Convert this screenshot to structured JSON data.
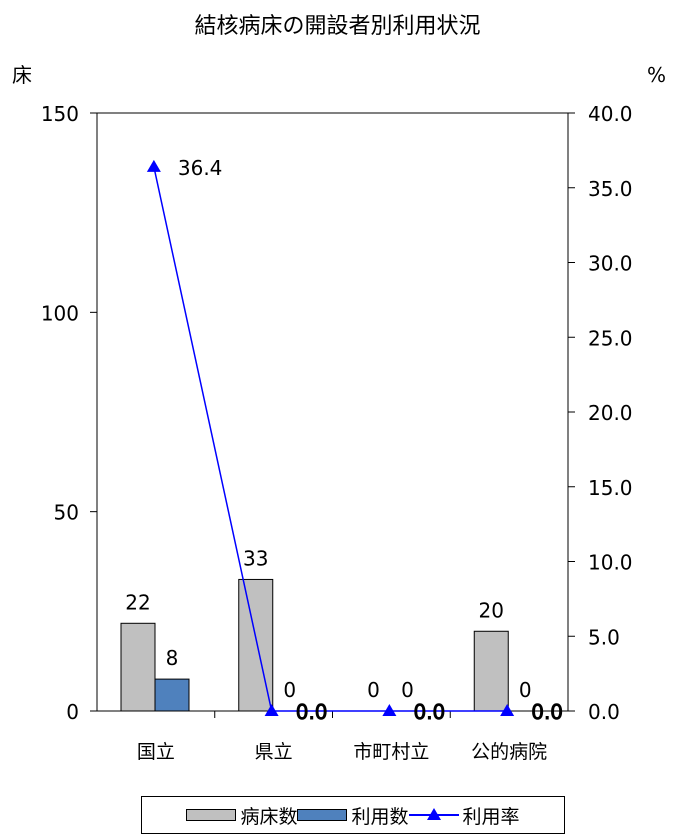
{
  "chart_data": {
    "type": "bar",
    "title": "結核病床の開設者別利用状況",
    "categories": [
      "国立",
      "県立",
      "市町村立",
      "公的病院"
    ],
    "series": [
      {
        "name": "病床数",
        "kind": "bar",
        "axis": "left",
        "color": "#c0c0c0",
        "values": [
          22,
          33,
          0,
          20
        ]
      },
      {
        "name": "利用数",
        "kind": "bar",
        "axis": "left",
        "color": "#4f81bd",
        "values": [
          8,
          0,
          0,
          0
        ]
      },
      {
        "name": "利用率",
        "kind": "line",
        "axis": "right",
        "color": "#0000ff",
        "marker": "triangle",
        "values": [
          36.4,
          0.0,
          0.0,
          0.0
        ]
      }
    ],
    "y_left": {
      "unit": "床",
      "min": 0,
      "max": 150,
      "ticks": [
        "0",
        "50",
        "100",
        "150"
      ]
    },
    "y_right": {
      "unit": "%",
      "min": 0,
      "max": 40,
      "ticks": [
        "0.0",
        "5.0",
        "10.0",
        "15.0",
        "20.0",
        "25.0",
        "30.0",
        "35.0",
        "40.0"
      ]
    },
    "data_labels": {
      "bars": [
        [
          "22",
          "8"
        ],
        [
          "33",
          "0"
        ],
        [
          "0",
          "0"
        ],
        [
          "20",
          "0"
        ]
      ],
      "line": [
        "36.4",
        "0.0",
        "0.0",
        "0.0"
      ]
    },
    "legend": {
      "position": "bottom"
    }
  }
}
